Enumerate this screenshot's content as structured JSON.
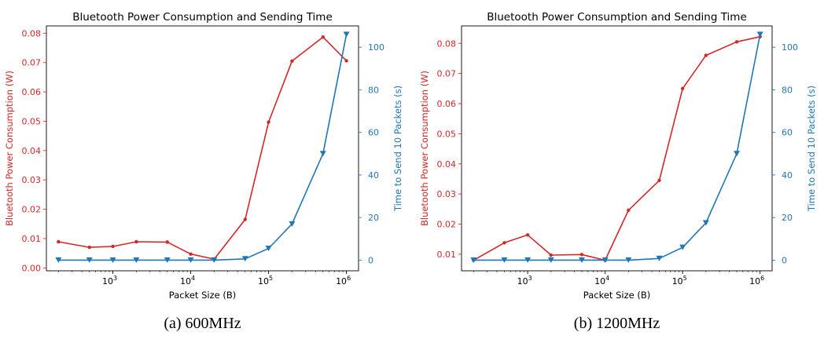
{
  "colors": {
    "power": "#d62728",
    "time": "#1f77b4",
    "axis": "#000000"
  },
  "chart_data": [
    {
      "type": "line",
      "title": "Bluetooth Power Consumption and Sending Time",
      "caption": "(a) 600MHz",
      "xlabel": "Packet Size (B)",
      "xscale": "log",
      "xlim": [
        140,
        1430000
      ],
      "xticks": [
        1000,
        10000,
        100000,
        1000000
      ],
      "xtick_labels": [
        {
          "base": "10",
          "exp": "3"
        },
        {
          "base": "10",
          "exp": "4"
        },
        {
          "base": "10",
          "exp": "5"
        },
        {
          "base": "10",
          "exp": "6"
        }
      ],
      "left_axis": {
        "label": "Bluetooth Power Consumption (W)",
        "ylim": [
          -0.001,
          0.0825
        ],
        "ticks": [
          0.0,
          0.01,
          0.02,
          0.03,
          0.04,
          0.05,
          0.06,
          0.07,
          0.08
        ],
        "tick_labels": [
          "0.00",
          "0.01",
          "0.02",
          "0.03",
          "0.04",
          "0.05",
          "0.06",
          "0.07",
          "0.08"
        ]
      },
      "right_axis": {
        "label": "Time to Send 10 Packets (s)",
        "ylim": [
          -5,
          110
        ],
        "ticks": [
          0,
          20,
          40,
          60,
          80,
          100
        ],
        "tick_labels": [
          "0",
          "20",
          "40",
          "60",
          "80",
          "100"
        ]
      },
      "x": [
        200,
        500,
        1000,
        2000,
        5000,
        10000,
        20000,
        50000,
        100000,
        200000,
        500000,
        1000000
      ],
      "series": [
        {
          "axis": "left",
          "marker": "dot",
          "values": [
            0.0089,
            0.007,
            0.0073,
            0.0089,
            0.0088,
            0.0047,
            0.003,
            0.0165,
            0.0497,
            0.0705,
            0.0787,
            0.0706
          ]
        },
        {
          "axis": "right",
          "marker": "triangle-down",
          "values": [
            0,
            0,
            0,
            0,
            0,
            0,
            0,
            0.6,
            5.5,
            17,
            50,
            106
          ]
        }
      ]
    },
    {
      "type": "line",
      "title": "Bluetooth Power Consumption and Sending Time",
      "caption": "(b) 1200MHz",
      "xlabel": "Packet Size (B)",
      "xscale": "log",
      "xlim": [
        140,
        1430000
      ],
      "xticks": [
        1000,
        10000,
        100000,
        1000000
      ],
      "xtick_labels": [
        {
          "base": "10",
          "exp": "3"
        },
        {
          "base": "10",
          "exp": "4"
        },
        {
          "base": "10",
          "exp": "5"
        },
        {
          "base": "10",
          "exp": "6"
        }
      ],
      "left_axis": {
        "label": "Bluetooth Power Consumption (W)",
        "ylim": [
          0.0045,
          0.0858
        ],
        "ticks": [
          0.01,
          0.02,
          0.03,
          0.04,
          0.05,
          0.06,
          0.07,
          0.08
        ],
        "tick_labels": [
          "0.01",
          "0.02",
          "0.03",
          "0.04",
          "0.05",
          "0.06",
          "0.07",
          "0.08"
        ]
      },
      "right_axis": {
        "label": "Time to Send 10 Packets (s)",
        "ylim": [
          -5,
          110
        ],
        "ticks": [
          0,
          20,
          40,
          60,
          80,
          100
        ],
        "tick_labels": [
          "0",
          "20",
          "40",
          "60",
          "80",
          "100"
        ]
      },
      "x": [
        200,
        500,
        1000,
        2000,
        5000,
        10000,
        20000,
        50000,
        100000,
        200000,
        500000,
        1000000
      ],
      "series": [
        {
          "axis": "left",
          "marker": "dot",
          "values": [
            0.008,
            0.0138,
            0.0164,
            0.0097,
            0.0099,
            0.008,
            0.0246,
            0.0345,
            0.065,
            0.076,
            0.0805,
            0.0822
          ]
        },
        {
          "axis": "right",
          "marker": "triangle-down",
          "values": [
            0,
            0,
            0,
            0,
            0,
            0,
            0,
            0.8,
            6,
            17.5,
            50,
            106
          ]
        }
      ]
    }
  ]
}
